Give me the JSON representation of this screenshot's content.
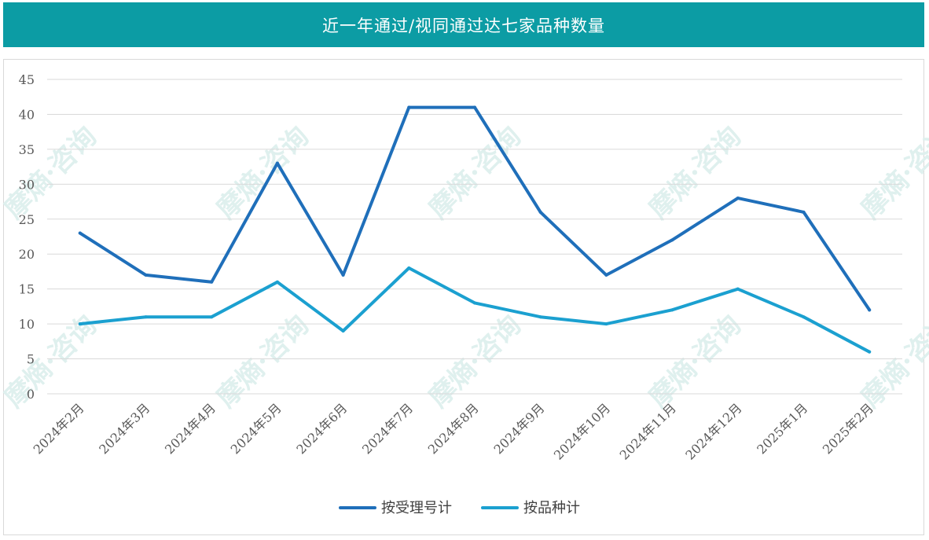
{
  "header": {
    "title": "近一年通过/视同通过达七家品种数量"
  },
  "colors": {
    "header_bg": "#0c9ca4",
    "series_1": "#1f6fba",
    "series_2": "#1ba0d0",
    "grid": "#d9d9d9"
  },
  "watermark": "摩熵·咨询",
  "chart_data": {
    "type": "line",
    "title": "近一年通过/视同通过达七家品种数量",
    "categories": [
      "2024年2月",
      "2024年3月",
      "2024年4月",
      "2024年5月",
      "2024年6月",
      "2024年7月",
      "2024年8月",
      "2024年9月",
      "2024年10月",
      "2024年11月",
      "2024年12月",
      "2025年1月",
      "2025年2月"
    ],
    "series": [
      {
        "name": "按受理号计",
        "values": [
          23,
          17,
          16,
          33,
          17,
          41,
          41,
          26,
          17,
          22,
          28,
          26,
          12
        ]
      },
      {
        "name": "按品种计",
        "values": [
          10,
          11,
          11,
          16,
          9,
          18,
          13,
          11,
          10,
          12,
          15,
          11,
          6
        ]
      }
    ],
    "ylim": [
      0,
      45
    ],
    "yticks": [
      0,
      5,
      10,
      15,
      20,
      25,
      30,
      35,
      40,
      45
    ],
    "grid": true,
    "legend": "bottom-center",
    "xlabel": "",
    "ylabel": ""
  }
}
